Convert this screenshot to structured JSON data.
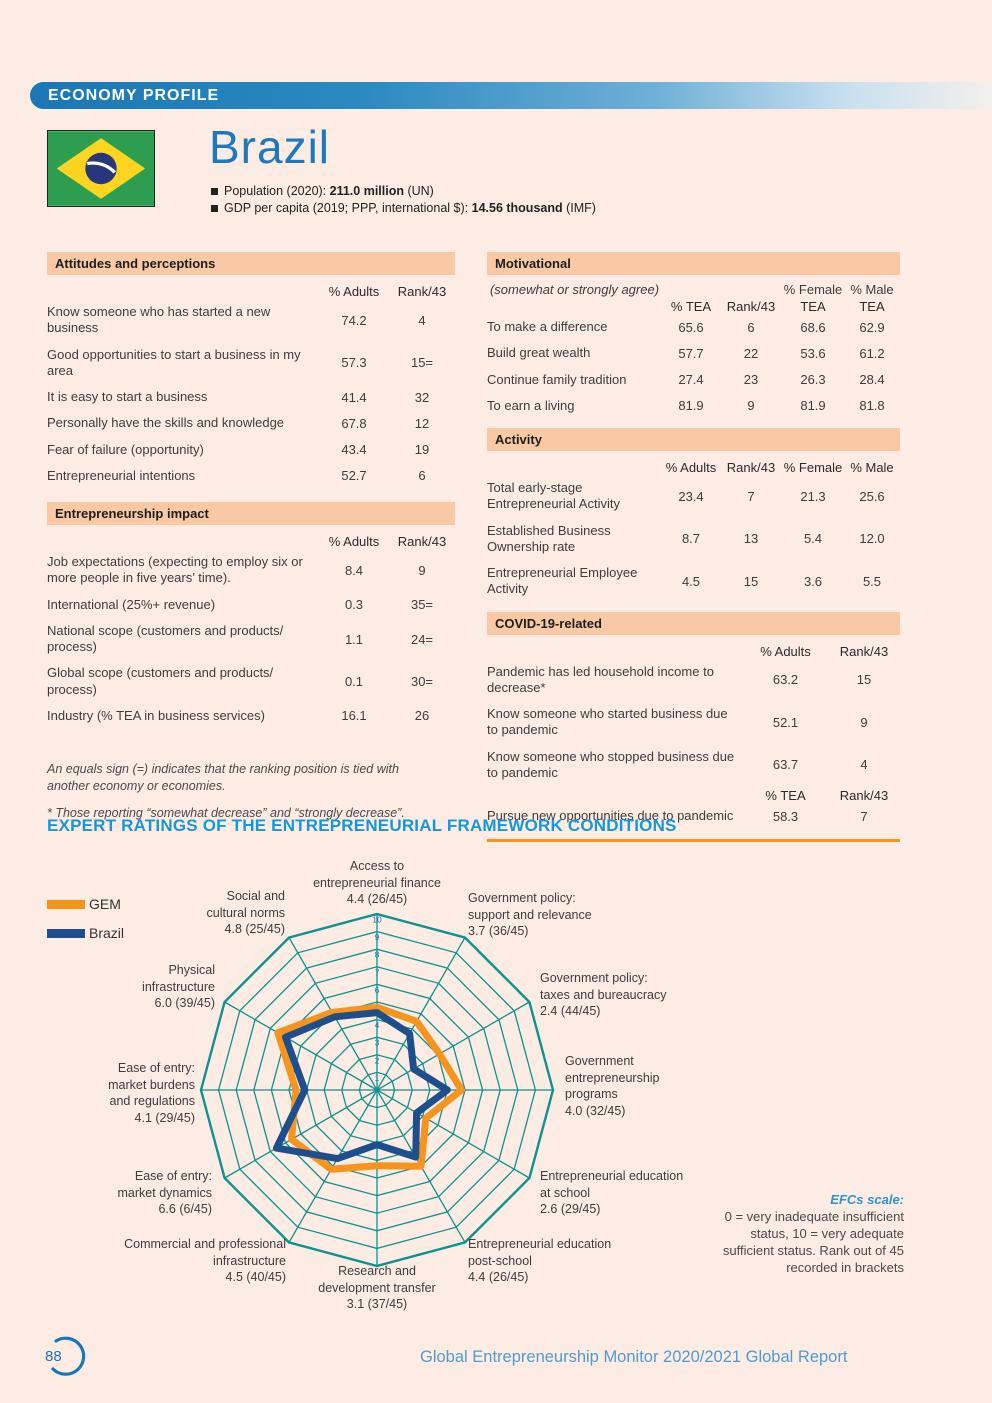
{
  "header": {
    "banner": "ECONOMY PROFILE"
  },
  "profile": {
    "country": "Brazil",
    "population_label": "Population (2020):",
    "population_value": "211.0 million",
    "population_source": "(UN)",
    "gdp_label": "GDP per capita (2019; PPP, international $):",
    "gdp_value": "14.56 thousand",
    "gdp_source": "(IMF)"
  },
  "tables": {
    "attitudes": {
      "title": "Attitudes and perceptions",
      "col_headers": [
        "% Adults",
        "Rank/43"
      ],
      "rows": [
        {
          "label": "Know someone who has started a new business",
          "values": [
            "74.2",
            "4"
          ]
        },
        {
          "label": "Good opportunities to start a business in my area",
          "values": [
            "57.3",
            "15="
          ]
        },
        {
          "label": "It is easy to start a business",
          "values": [
            "41.4",
            "32"
          ]
        },
        {
          "label": "Personally have the skills and knowledge",
          "values": [
            "67.8",
            "12"
          ]
        },
        {
          "label": "Fear of failure (opportunity)",
          "values": [
            "43.4",
            "19"
          ]
        },
        {
          "label": "Entrepreneurial intentions",
          "values": [
            "52.7",
            "6"
          ]
        }
      ]
    },
    "impact": {
      "title": "Entrepreneurship impact",
      "col_headers": [
        "% Adults",
        "Rank/43"
      ],
      "rows": [
        {
          "label": "Job expectations (expecting to employ six or more people in five years’ time).",
          "values": [
            "8.4",
            "9"
          ]
        },
        {
          "label": "International (25%+ revenue)",
          "values": [
            "0.3",
            "35="
          ]
        },
        {
          "label": "National scope (customers and products/ process)",
          "values": [
            "1.1",
            "24="
          ]
        },
        {
          "label": "Global scope (customers and products/ process)",
          "values": [
            "0.1",
            "30="
          ]
        },
        {
          "label": "Industry (% TEA in business services)",
          "values": [
            "16.1",
            "26"
          ]
        }
      ]
    },
    "motivational": {
      "title": "Motivational",
      "subtitle": "(somewhat or strongly agree)",
      "col_headers_top": [
        "% Female",
        "% Male"
      ],
      "col_headers": [
        "% TEA",
        "Rank/43",
        "TEA",
        "TEA"
      ],
      "rows": [
        {
          "label": "To make a difference",
          "values": [
            "65.6",
            "6",
            "68.6",
            "62.9"
          ]
        },
        {
          "label": "Build great wealth",
          "values": [
            "57.7",
            "22",
            "53.6",
            "61.2"
          ]
        },
        {
          "label": "Continue family tradition",
          "values": [
            "27.4",
            "23",
            "26.3",
            "28.4"
          ]
        },
        {
          "label": "To earn a living",
          "values": [
            "81.9",
            "9",
            "81.9",
            "81.8"
          ]
        }
      ]
    },
    "activity": {
      "title": "Activity",
      "col_headers": [
        "% Adults",
        "Rank/43",
        "% Female",
        "% Male"
      ],
      "rows": [
        {
          "label": "Total early-stage Entrepreneurial Activity",
          "values": [
            "23.4",
            "7",
            "21.3",
            "25.6"
          ]
        },
        {
          "label": "Established Business Ownership rate",
          "values": [
            "8.7",
            "13",
            "5.4",
            "12.0"
          ]
        },
        {
          "label": "Entrepreneurial Employee Activity",
          "values": [
            "4.5",
            "15",
            "3.6",
            "5.5"
          ]
        }
      ]
    },
    "covid": {
      "title": "COVID-19-related",
      "col_headers": [
        "% Adults",
        "Rank/43"
      ],
      "rows": [
        {
          "label": "Pandemic has led household income to decrease*",
          "values": [
            "63.2",
            "15"
          ]
        },
        {
          "label": "Know someone who started business due to pandemic",
          "values": [
            "52.1",
            "9"
          ]
        },
        {
          "label": "Know someone who stopped business due to pandemic",
          "values": [
            "63.7",
            "4"
          ]
        }
      ],
      "col_headers2": [
        "% TEA",
        "Rank/43"
      ],
      "rows2": [
        {
          "label": "Pursue new opportunities due to pandemic",
          "values": [
            "58.3",
            "7"
          ]
        }
      ]
    }
  },
  "footnotes": {
    "equals": "An equals sign (=) indicates that the ranking position is tied with another economy or economies.",
    "star": "* Those reporting “somewhat decrease” and “strongly decrease”."
  },
  "efc": {
    "title": "EXPERT RATINGS OF THE ENTREPRENEURIAL FRAMEWORK CONDITIONS",
    "legend": [
      {
        "name": "GEM",
        "color": "#f7941e"
      },
      {
        "name": "Brazil",
        "color": "#1e4e8c"
      }
    ],
    "scale_note_title": "EFCs scale:",
    "scale_note": "0 = very inadequate insufficient status, 10 = very adequate sufficient status. Rank out of 45 recorded in brackets"
  },
  "chart_data": {
    "type": "radar",
    "rlim": [
      0,
      10
    ],
    "ring_step": 1,
    "ring_labels": [
      "1",
      "2",
      "3",
      "4",
      "5",
      "6",
      "7",
      "8",
      "9",
      "10"
    ],
    "grid_color": "#0f918e",
    "ring_label_color": "#2878b8",
    "axes": [
      {
        "label": "Access to entrepreneurial finance",
        "display": "Access to\nentrepreneurial finance\n4.4 (26/45)",
        "brazil_value": 4.4,
        "rank": "26/45"
      },
      {
        "label": "Government policy: support and relevance",
        "display": "Government policy:\nsupport and relevance\n3.7 (36/45)",
        "brazil_value": 3.7,
        "rank": "36/45"
      },
      {
        "label": "Government policy: taxes and bureaucracy",
        "display": "Government policy:\ntaxes and bureaucracy\n2.4 (44/45)",
        "brazil_value": 2.4,
        "rank": "44/45"
      },
      {
        "label": "Government entrepreneurship programs",
        "display": "Government\nentrepreneurship\nprograms\n4.0 (32/45)",
        "brazil_value": 4.0,
        "rank": "32/45"
      },
      {
        "label": "Entrepreneurial education at school",
        "display": "Entrepreneurial education\nat school\n2.6 (29/45)",
        "brazil_value": 2.6,
        "rank": "29/45"
      },
      {
        "label": "Entrepreneurial education post-school",
        "display": "Entrepreneurial education\npost-school\n4.4 (26/45)",
        "brazil_value": 4.4,
        "rank": "26/45"
      },
      {
        "label": "Research and development transfer",
        "display": "Research and\ndevelopment transfer\n3.1 (37/45)",
        "brazil_value": 3.1,
        "rank": "37/45"
      },
      {
        "label": "Commercial and professional infrastructure",
        "display": "Commercial and professional\ninfrastructure\n4.5 (40/45)",
        "brazil_value": 4.5,
        "rank": "40/45"
      },
      {
        "label": "Ease of entry: market dynamics",
        "display": "Ease of entry:\nmarket dynamics\n6.6 (6/45)",
        "brazil_value": 6.6,
        "rank": "6/45"
      },
      {
        "label": "Ease of entry: market burdens and regulations",
        "display": "Ease of entry:\nmarket burdens\nand regulations\n4.1 (29/45)",
        "brazil_value": 4.1,
        "rank": "29/45"
      },
      {
        "label": "Physical infrastructure",
        "display": "Physical\ninfrastructure\n6.0 (39/45)",
        "brazil_value": 6.0,
        "rank": "39/45"
      },
      {
        "label": "Social and cultural norms",
        "display": "Social and\ncultural norms\n4.8 (25/45)",
        "brazil_value": 4.8,
        "rank": "25/45"
      }
    ],
    "series": [
      {
        "name": "GEM",
        "color": "#f7941e",
        "values": [
          4.7,
          4.5,
          4.1,
          4.8,
          3.2,
          5.0,
          4.3,
          5.2,
          5.6,
          4.6,
          6.5,
          5.1
        ]
      },
      {
        "name": "Brazil",
        "color": "#1e4e8c",
        "values": [
          4.4,
          3.7,
          2.4,
          4.0,
          2.6,
          4.4,
          3.1,
          4.5,
          6.6,
          4.1,
          6.0,
          4.8
        ]
      }
    ]
  },
  "footer": {
    "page_number": "88",
    "report_title": "Global Entrepreneurship Monitor 2020/2021 Global Report"
  }
}
